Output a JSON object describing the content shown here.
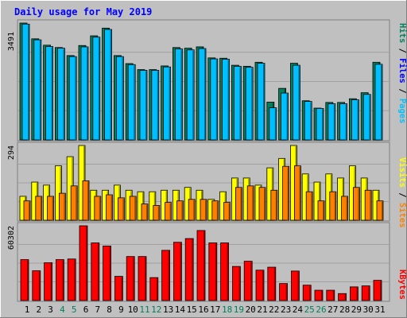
{
  "chart_data": [
    {
      "type": "bar",
      "title": "Daily usage for May 2019",
      "ylabel_max": "3491",
      "legend": [
        "Pages",
        "Files",
        "Hits"
      ],
      "ylim": [
        0,
        3491
      ],
      "categories": [
        "1",
        "2",
        "3",
        "4",
        "5",
        "6",
        "7",
        "8",
        "9",
        "10",
        "11",
        "12",
        "13",
        "14",
        "15",
        "16",
        "17",
        "18",
        "19",
        "20",
        "21",
        "22",
        "23",
        "24",
        "25",
        "26",
        "27",
        "28",
        "29",
        "30",
        "31"
      ],
      "series": [
        {
          "name": "Hits",
          "color": "#00805c",
          "values": [
            3491,
            3020,
            2830,
            2760,
            2520,
            2820,
            3110,
            3340,
            2520,
            2280,
            2100,
            2100,
            2210,
            2760,
            2740,
            2780,
            2450,
            2440,
            2230,
            2200,
            2320,
            1130,
            1540,
            2290,
            1170,
            950,
            1120,
            1120,
            1230,
            1410,
            2320
          ]
        },
        {
          "name": "Files",
          "color": "#00bfff",
          "values": [
            3460,
            2990,
            2790,
            2740,
            2490,
            2780,
            3070,
            3300,
            2490,
            2250,
            2080,
            2080,
            2180,
            2720,
            2690,
            2730,
            2420,
            2410,
            2200,
            2170,
            2290,
            960,
            1400,
            2230,
            1150,
            940,
            1080,
            1080,
            1200,
            1360,
            2260
          ]
        }
      ]
    },
    {
      "type": "bar",
      "ylabel_max": "294",
      "legend": [
        "Sites",
        "Visits"
      ],
      "ylim": [
        0,
        294
      ],
      "categories": [
        "1",
        "2",
        "3",
        "4",
        "5",
        "6",
        "7",
        "8",
        "9",
        "10",
        "11",
        "12",
        "13",
        "14",
        "15",
        "16",
        "17",
        "18",
        "19",
        "20",
        "21",
        "22",
        "23",
        "24",
        "25",
        "26",
        "27",
        "28",
        "29",
        "30",
        "31"
      ],
      "series": [
        {
          "name": "Visits",
          "color": "#ffff00",
          "values": [
            94,
            150,
            138,
            214,
            250,
            294,
            118,
            118,
            138,
            118,
            112,
            112,
            118,
            118,
            129,
            118,
            82,
            112,
            166,
            166,
            138,
            206,
            243,
            294,
            182,
            150,
            182,
            166,
            214,
            166,
            118
          ]
        },
        {
          "name": "Sites",
          "color": "#ff8000",
          "values": [
            76,
            94,
            94,
            106,
            135,
            155,
            94,
            100,
            88,
            94,
            64,
            58,
            70,
            76,
            82,
            82,
            76,
            70,
            129,
            135,
            129,
            118,
            212,
            214,
            112,
            76,
            112,
            94,
            129,
            118,
            76
          ]
        }
      ]
    },
    {
      "type": "bar",
      "ylabel_max": "60302",
      "legend": [
        "KBytes"
      ],
      "ylim": [
        0,
        60302
      ],
      "categories": [
        "1",
        "2",
        "3",
        "4",
        "5",
        "6",
        "7",
        "8",
        "9",
        "10",
        "11",
        "12",
        "13",
        "14",
        "15",
        "16",
        "17",
        "18",
        "19",
        "20",
        "21",
        "22",
        "23",
        "24",
        "25",
        "26",
        "27",
        "28",
        "29",
        "30",
        "31"
      ],
      "series": [
        {
          "name": "KBytes",
          "color": "#ff0000",
          "values": [
            33000,
            24000,
            30500,
            33000,
            33500,
            60302,
            46500,
            44000,
            19500,
            35500,
            35500,
            18500,
            40500,
            47000,
            50000,
            56500,
            46500,
            46500,
            27500,
            31700,
            24500,
            26900,
            13700,
            23800,
            12400,
            8300,
            8300,
            5600,
            11000,
            11800,
            16300
          ]
        }
      ]
    }
  ],
  "x_axis": {
    "day_labels": [
      "1",
      "2",
      "3",
      "4",
      "5",
      "6",
      "7",
      "8",
      "9",
      "10",
      "11",
      "12",
      "13",
      "14",
      "15",
      "16",
      "17",
      "18",
      "19",
      "20",
      "21",
      "22",
      "23",
      "24",
      "25",
      "26",
      "27",
      "28",
      "29",
      "30",
      "31"
    ],
    "weekend_days": [
      4,
      5,
      11,
      12,
      18,
      19,
      25,
      26
    ],
    "weekday_color": "#000000",
    "weekend_color": "#00805c"
  },
  "colors": {
    "background": "#c0c0c0",
    "title": "#0000ff",
    "grid": "#a0a0a0",
    "legend_hits": "#00805c",
    "legend_files": "#0000ff",
    "legend_pages": "#00bfff",
    "legend_visits": "#ffff00",
    "legend_sites": "#ff8000",
    "legend_kbytes": "#ff0000"
  }
}
